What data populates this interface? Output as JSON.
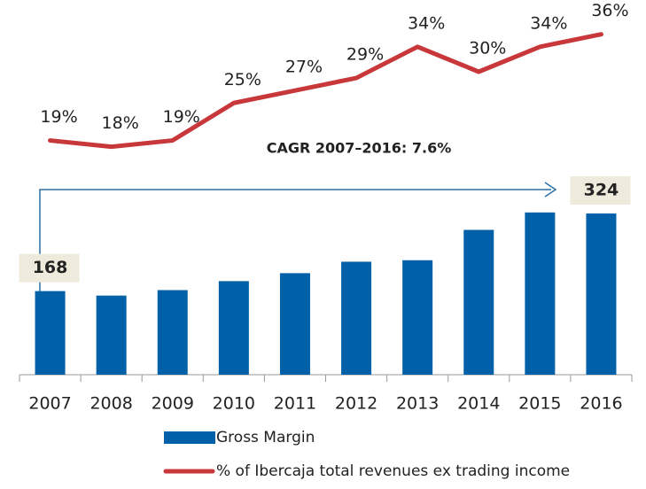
{
  "chart_data": {
    "type": "bar",
    "annotation": "CAGR 2007–2016: 7.6%",
    "categories": [
      "2007",
      "2008",
      "2009",
      "2010",
      "2011",
      "2012",
      "2013",
      "2014",
      "2015",
      "2016"
    ],
    "series": [
      {
        "name": "Gross Margin",
        "color": "#0060a8",
        "type": "bar",
        "values": [
          168,
          159,
          170,
          188,
          204,
          227,
          230,
          291,
          326,
          324
        ],
        "value_labels": [
          "168",
          null,
          null,
          null,
          null,
          null,
          null,
          null,
          null,
          "324"
        ]
      },
      {
        "name": "% of Ibercaja total revenues ex trading income",
        "color": "#c8373a",
        "type": "line",
        "axis": "y2",
        "values": [
          19,
          18,
          19,
          25,
          27,
          29,
          34,
          30,
          34,
          36
        ],
        "value_labels": [
          "19%",
          "18%",
          "19%",
          "25%",
          "27%",
          "29%",
          "34%",
          "30%",
          "34%",
          "36%"
        ]
      }
    ],
    "ylim": [
      0,
      420
    ],
    "y2lim": [
      10,
      40
    ]
  }
}
